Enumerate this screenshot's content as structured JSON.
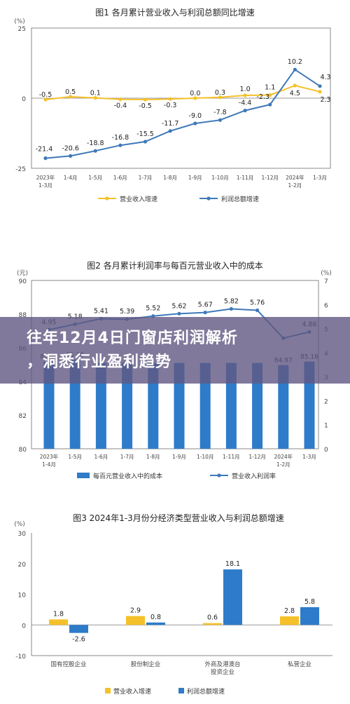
{
  "banner": {
    "line1": "往年12月4日门窗店利润解析",
    "line2": "，洞悉行业盈利趋势"
  },
  "colors": {
    "revenue": "#f5c12a",
    "profit": "#3f79b9",
    "bar": "#2e7cc9",
    "axis": "#888888",
    "grid": "#d9d9d9",
    "banner_bg": "#605882"
  },
  "chart_data": [
    {
      "type": "line",
      "title": "图1  各月累计营业收入与利润总额同比增速",
      "y_unit": "(%)",
      "ylim": [
        -25,
        25
      ],
      "y_ticks": [
        "25",
        "0",
        "-25"
      ],
      "categories": [
        [
          "2023年",
          "1-3月"
        ],
        [
          "1-4月"
        ],
        [
          "1-5月"
        ],
        [
          "1-6月"
        ],
        [
          "1-7月"
        ],
        [
          "1-8月"
        ],
        [
          "1-9月"
        ],
        [
          "1-10月"
        ],
        [
          "1-11月"
        ],
        [
          "1-12月"
        ],
        [
          "2024年",
          "1-2月"
        ],
        [
          "1-3月"
        ]
      ],
      "series": [
        {
          "name": "营业收入增速",
          "values": [
            -0.5,
            0.5,
            0.1,
            -0.4,
            -0.5,
            -0.3,
            0.0,
            0.3,
            1.0,
            1.1,
            4.5,
            2.3
          ],
          "labels": [
            "-0.5",
            "0.5",
            "0.1",
            "-0.4",
            "-0.5",
            "-0.3",
            "0.0",
            "0.3",
            "1.0",
            "1.1",
            "4.5",
            "2.3"
          ],
          "color": "#f5c12a"
        },
        {
          "name": "利润总额增速",
          "values": [
            -21.4,
            -20.6,
            -18.8,
            -16.8,
            -15.5,
            -11.7,
            -9.0,
            -7.8,
            -4.4,
            -2.3,
            10.2,
            4.3
          ],
          "labels": [
            "-21.4",
            "-20.6",
            "-18.8",
            "-16.8",
            "-15.5",
            "-11.7",
            "-9.0",
            "-7.8",
            "-4.4",
            "-2.3",
            "10.2",
            "4.3"
          ],
          "color": "#3f79b9"
        }
      ],
      "legend_position": "bottom",
      "grid": false
    },
    {
      "type": "bar+line",
      "title": "图2  各月累计利润率与每百元营业收入中的成本",
      "left_unit": "(元)",
      "right_unit": "(%)",
      "ylim_left": [
        80,
        90
      ],
      "y_ticks_left": [
        "80",
        "82",
        "84",
        "86",
        "88",
        "90"
      ],
      "ylim_right": [
        0,
        7
      ],
      "y_ticks_right": [
        "0",
        "1",
        "2",
        "3",
        "4",
        "5",
        "6",
        "7"
      ],
      "categories": [
        [
          "2023年",
          "1-4月"
        ],
        [
          "1-5月"
        ],
        [
          "1-6月"
        ],
        [
          "1-7月"
        ],
        [
          "1-8月"
        ],
        [
          "1-9月"
        ],
        [
          "1-10月"
        ],
        [
          "1-11月"
        ],
        [
          "1-12月"
        ],
        [
          "2024年",
          "1-2月"
        ],
        [
          "1-3月"
        ]
      ],
      "bars": {
        "name": "每百元营业收入中的成本",
        "values": [
          85.18,
          85.29,
          85.1,
          85.1,
          85.1,
          85.1,
          85.1,
          85.1,
          85.1,
          84.97,
          85.18
        ],
        "labels": [
          "85.18",
          "85.29",
          "",
          "",
          "",
          "",
          "",
          "",
          "",
          "84.97",
          "85.18"
        ],
        "color": "#2e7cc9"
      },
      "line": {
        "name": "营业收入利润率",
        "values": [
          4.95,
          5.18,
          5.41,
          5.39,
          5.52,
          5.62,
          5.67,
          5.82,
          5.76,
          4.6,
          4.86
        ],
        "labels": [
          "4.95",
          "5.18",
          "5.41",
          "5.39",
          "5.52",
          "5.62",
          "5.67",
          "5.82",
          "5.76",
          "",
          "4.86"
        ],
        "color": "#3f79b9"
      },
      "legend_position": "bottom",
      "grid": false
    },
    {
      "type": "bar",
      "title": "图3  2024年1-3月份分经济类型营业收入与利润总额增速",
      "y_unit": "(%)",
      "ylim": [
        -10,
        30
      ],
      "y_ticks": [
        "-10",
        "0",
        "10",
        "20",
        "30"
      ],
      "categories": [
        [
          "国有控股企业"
        ],
        [
          "股份制企业"
        ],
        [
          "外商及港澳台",
          "投资企业"
        ],
        [
          "私营企业"
        ]
      ],
      "series": [
        {
          "name": "营业收入增速",
          "values": [
            1.8,
            2.9,
            0.6,
            2.8
          ],
          "labels": [
            "1.8",
            "2.9",
            "0.6",
            "2.8"
          ],
          "color": "#f5c12a"
        },
        {
          "name": "利润总额增速",
          "values": [
            -2.6,
            0.8,
            18.1,
            5.8
          ],
          "labels": [
            "-2.6",
            "0.8",
            "18.1",
            "5.8"
          ],
          "color": "#2e7cc9"
        }
      ],
      "legend_position": "bottom",
      "grid": false
    }
  ]
}
